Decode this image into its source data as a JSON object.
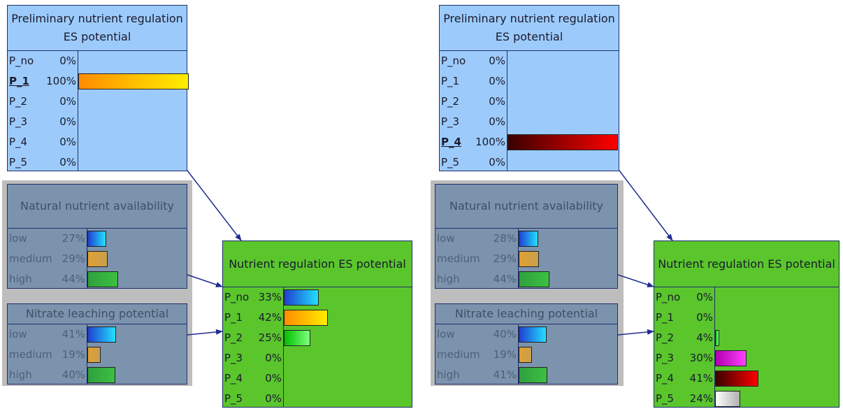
{
  "colors": {
    "orange_grad": [
      "#ff8c00",
      "#ffee00"
    ],
    "darkred_grad": [
      "#3a0000",
      "#ff0000"
    ],
    "blue_grad": [
      "#2040d0",
      "#22e0ff"
    ],
    "amber_grad": [
      "#e0a030",
      "#c8a050"
    ],
    "green_grad": [
      "#2fa040",
      "#3cc040"
    ],
    "brightgreen_grad": [
      "#00c000",
      "#80ff80"
    ],
    "magenta_grad": [
      "#b000b0",
      "#ff40ff"
    ],
    "white_grad": [
      "#ffffff",
      "#b0b0b0"
    ]
  },
  "left": {
    "prelim": {
      "title": "Preliminary nutrient regulation ES potential",
      "rows": [
        {
          "label": "P_no",
          "pct": "0%",
          "value": 0
        },
        {
          "label": "P_1",
          "pct": "100%",
          "value": 100,
          "selected": true,
          "color": "orange_grad"
        },
        {
          "label": "P_2",
          "pct": "0%",
          "value": 0
        },
        {
          "label": "P_3",
          "pct": "0%",
          "value": 0
        },
        {
          "label": "P_4",
          "pct": "0%",
          "value": 0
        },
        {
          "label": "P_5",
          "pct": "0%",
          "value": 0
        }
      ]
    },
    "natural": {
      "title": "Natural nutrient availability",
      "rows": [
        {
          "label": "low",
          "pct": "27%",
          "value": 27,
          "color": "blue_grad"
        },
        {
          "label": "medium",
          "pct": "29%",
          "value": 29,
          "color": "amber_grad"
        },
        {
          "label": "high",
          "pct": "44%",
          "value": 44,
          "color": "green_grad"
        }
      ]
    },
    "nitrate": {
      "title": "Nitrate leaching potential",
      "rows": [
        {
          "label": "low",
          "pct": "41%",
          "value": 41,
          "color": "blue_grad"
        },
        {
          "label": "medium",
          "pct": "19%",
          "value": 19,
          "color": "amber_grad"
        },
        {
          "label": "high",
          "pct": "40%",
          "value": 40,
          "color": "green_grad"
        }
      ]
    },
    "nutrient": {
      "title": "Nutrient regulation ES potential",
      "rows": [
        {
          "label": "P_no",
          "pct": "33%",
          "value": 33,
          "color": "blue_grad"
        },
        {
          "label": "P_1",
          "pct": "42%",
          "value": 42,
          "color": "orange_grad"
        },
        {
          "label": "P_2",
          "pct": "25%",
          "value": 25,
          "color": "brightgreen_grad"
        },
        {
          "label": "P_3",
          "pct": "0%",
          "value": 0
        },
        {
          "label": "P_4",
          "pct": "0%",
          "value": 0
        },
        {
          "label": "P_5",
          "pct": "0%",
          "value": 0
        }
      ]
    }
  },
  "right": {
    "prelim": {
      "title": "Preliminary nutrient regulation ES potential",
      "rows": [
        {
          "label": "P_no",
          "pct": "0%",
          "value": 0
        },
        {
          "label": "P_1",
          "pct": "0%",
          "value": 0
        },
        {
          "label": "P_2",
          "pct": "0%",
          "value": 0
        },
        {
          "label": "P_3",
          "pct": "0%",
          "value": 0
        },
        {
          "label": "P_4",
          "pct": "100%",
          "value": 100,
          "selected": true,
          "color": "darkred_grad"
        },
        {
          "label": "P_5",
          "pct": "0%",
          "value": 0
        }
      ]
    },
    "natural": {
      "title": "Natural nutrient availability",
      "rows": [
        {
          "label": "low",
          "pct": "28%",
          "value": 28,
          "color": "blue_grad"
        },
        {
          "label": "medium",
          "pct": "29%",
          "value": 29,
          "color": "amber_grad"
        },
        {
          "label": "high",
          "pct": "44%",
          "value": 44,
          "color": "green_grad"
        }
      ]
    },
    "nitrate": {
      "title": "Nitrate leaching potential",
      "rows": [
        {
          "label": "low",
          "pct": "40%",
          "value": 40,
          "color": "blue_grad"
        },
        {
          "label": "medium",
          "pct": "19%",
          "value": 19,
          "color": "amber_grad"
        },
        {
          "label": "high",
          "pct": "41%",
          "value": 41,
          "color": "green_grad"
        }
      ]
    },
    "nutrient": {
      "title": "Nutrient regulation ES potential",
      "rows": [
        {
          "label": "P_no",
          "pct": "0%",
          "value": 0
        },
        {
          "label": "P_1",
          "pct": "0%",
          "value": 0
        },
        {
          "label": "P_2",
          "pct": "4%",
          "value": 4,
          "color": "brightgreen_grad"
        },
        {
          "label": "P_3",
          "pct": "30%",
          "value": 30,
          "color": "magenta_grad"
        },
        {
          "label": "P_4",
          "pct": "41%",
          "value": 41,
          "color": "darkred_grad"
        },
        {
          "label": "P_5",
          "pct": "24%",
          "value": 24,
          "color": "white_grad"
        }
      ]
    }
  }
}
